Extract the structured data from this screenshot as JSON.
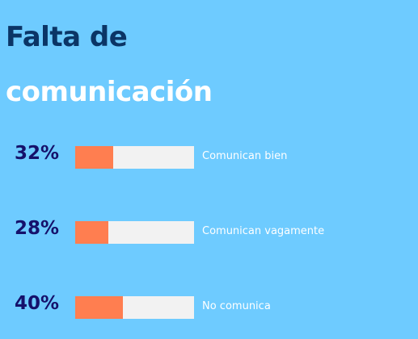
{
  "title": {
    "line1": "Falta de",
    "line2": "comunicación"
  },
  "colors": {
    "background": "#6ecbff",
    "title_dark": "#0b3566",
    "title_light": "#ffffff",
    "percent_text": "#15116b",
    "bar_fill": "#ff7e50",
    "bar_track": "#f2f2f2"
  },
  "chart_data": {
    "type": "bar",
    "orientation": "horizontal",
    "title": "Falta de comunicación",
    "categories": [
      "Comunican bien",
      "Comunican vagamente",
      "No comunica"
    ],
    "values": [
      32,
      28,
      40
    ],
    "value_labels": [
      "32%",
      "28%",
      "40%"
    ],
    "xlim": [
      0,
      100
    ]
  }
}
